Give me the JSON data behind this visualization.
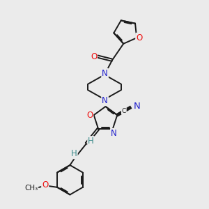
{
  "bg_color": "#ebebeb",
  "bond_color": "#1a1a1a",
  "bond_width": 1.4,
  "dbo": 0.055,
  "atom_colors": {
    "N": "#2222cc",
    "O": "#ee1111",
    "C": "#1a1a1a",
    "H": "#3a8a8a",
    "CN_N": "#2222cc"
  },
  "font_size": 8.5,
  "fig_size": [
    3.0,
    3.0
  ],
  "dpi": 100,
  "xlim": [
    0,
    10
  ],
  "ylim": [
    0,
    10
  ]
}
